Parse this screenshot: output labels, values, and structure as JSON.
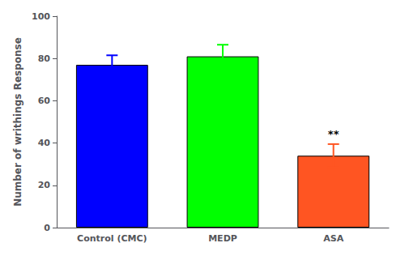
{
  "chart_data": {
    "type": "bar",
    "categories": [
      "Control (CMC)",
      "MEDP",
      "ASA"
    ],
    "values": [
      77.0,
      81.0,
      34.0
    ],
    "errors": [
      4.5,
      5.5,
      5.5
    ],
    "colors": [
      "#0000ff",
      "#00ff00",
      "#ff5522"
    ],
    "ylabel": "Number of writhings Response",
    "ylim": [
      0,
      100
    ],
    "yticks": [
      0,
      20,
      40,
      60,
      80,
      100
    ],
    "grid": false,
    "annotations": [
      {
        "text": "**",
        "category": "ASA",
        "color": "#000000"
      }
    ]
  }
}
